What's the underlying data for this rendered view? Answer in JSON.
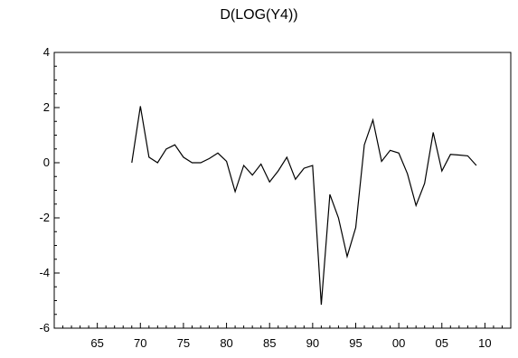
{
  "chart_data": {
    "type": "line",
    "title": "D(LOG(Y4))",
    "xlabel": "",
    "ylabel": "",
    "xlim": [
      1960,
      2013
    ],
    "ylim": [
      -6,
      4
    ],
    "x_ticks": [
      1965,
      1970,
      1975,
      1980,
      1985,
      1990,
      1995,
      2000,
      2005,
      2010
    ],
    "x_tick_labels": [
      "65",
      "70",
      "75",
      "80",
      "85",
      "90",
      "95",
      "00",
      "05",
      "10"
    ],
    "y_ticks": [
      -6,
      -4,
      -2,
      0,
      2,
      4
    ],
    "y_tick_labels": [
      "-6",
      "-4",
      "-2",
      "0",
      "2",
      "4"
    ],
    "grid": false,
    "series": [
      {
        "color": "#000000",
        "x": [
          1969,
          1970,
          1971,
          1972,
          1973,
          1974,
          1975,
          1976,
          1977,
          1978,
          1979,
          1980,
          1981,
          1982,
          1983,
          1984,
          1985,
          1986,
          1987,
          1988,
          1989,
          1990,
          1991,
          1992,
          1993,
          1994,
          1995,
          1996,
          1997,
          1998,
          1999,
          2000,
          2001,
          2002,
          2003,
          2004,
          2005,
          2006,
          2007,
          2008,
          2009
        ],
        "values": [
          0.0,
          2.05,
          0.2,
          0.0,
          0.5,
          0.65,
          0.2,
          0.0,
          0.0,
          0.15,
          0.35,
          0.05,
          -1.05,
          -0.1,
          -0.45,
          -0.05,
          -0.7,
          -0.3,
          0.2,
          -0.6,
          -0.2,
          -0.1,
          -5.15,
          -1.15,
          -2.0,
          -3.4,
          -2.35,
          0.65,
          1.55,
          0.05,
          0.45,
          0.35,
          -0.4,
          -1.55,
          -0.75,
          1.1,
          -0.3,
          0.3,
          0.28,
          0.25,
          -0.1
        ]
      }
    ]
  }
}
